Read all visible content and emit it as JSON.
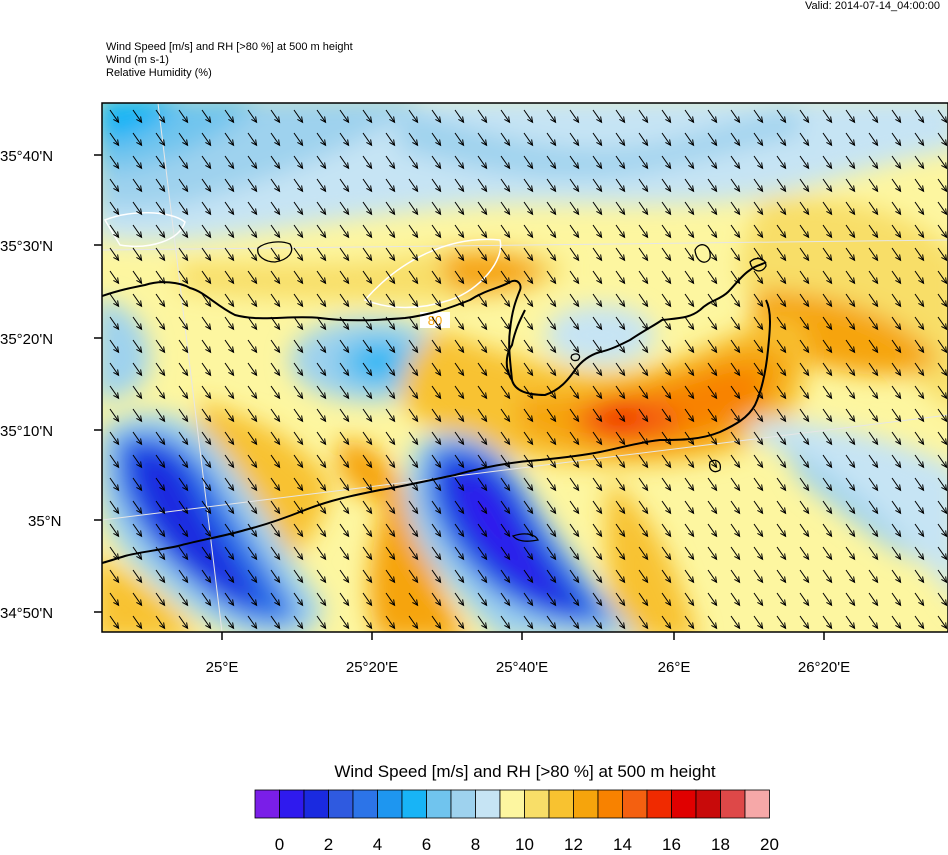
{
  "valid_label": "Valid: 2014-07-14_04:00:00",
  "header": {
    "line1": "Wind Speed [m/s] and RH [>80 %] at 500 m height",
    "line2": "Wind   (m s-1)",
    "line3": "Relative Humidity   (%)"
  },
  "axes": {
    "lat_labels": [
      "35°40'N",
      "35°30'N",
      "35°20'N",
      "35°10'N",
      "35°N",
      "34°50'N"
    ],
    "lon_labels": [
      "25°E",
      "25°20'E",
      "25°40'E",
      "26°E",
      "26°20'E"
    ]
  },
  "contour_label": "80",
  "colorbar": {
    "title": "Wind Speed [m/s] and RH [>80 %] at 500 m height",
    "colors": [
      "#7a1ee8",
      "#2f1aee",
      "#1a2ae0",
      "#2f5ae0",
      "#2c74e8",
      "#1e96f0",
      "#18b4f6",
      "#70c4ee",
      "#9ed2ee",
      "#c6e4f4",
      "#fdf6a0",
      "#f8de68",
      "#f8c230",
      "#f6a40c",
      "#f88200",
      "#f46010",
      "#f02a00",
      "#e00000",
      "#c80a0a",
      "#de4848",
      "#f6a8a8"
    ],
    "tick_labels": [
      "0",
      "2",
      "4",
      "6",
      "8",
      "10",
      "12",
      "14",
      "16",
      "18",
      "20"
    ]
  },
  "wind": {
    "direction": "NW to SE",
    "color": "#000000"
  }
}
